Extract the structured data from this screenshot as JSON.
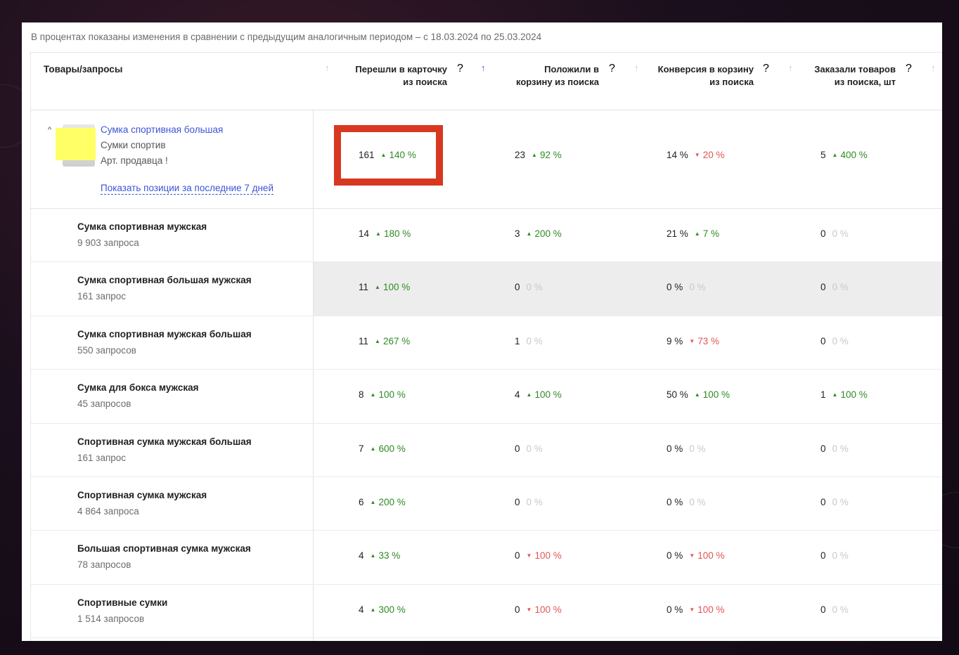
{
  "note": "В процентах показаны изменения в сравнении с предыдущим аналогичным периодом – с 18.03.2024 по 25.03.2024",
  "header": {
    "first_col": "Товары/запросы",
    "columns": [
      {
        "label1": "Перешли в карточку",
        "label2": "из поиска",
        "q": "?"
      },
      {
        "label1": "Положили в",
        "label2": "корзину из поиска",
        "q": "?"
      },
      {
        "label1": "Конверсия в корзину",
        "label2": "из поиска",
        "q": "?"
      },
      {
        "label1": "Заказали товаров",
        "label2": "из поиска, шт",
        "q": "?"
      }
    ],
    "sort_arrow": "↑"
  },
  "product": {
    "chevron": "^",
    "name": "Сумка спортивная большая",
    "category": "Сумки спортив",
    "article": "Арт. продавца !",
    "show_link": "Показать позиции за последние 7 дней",
    "cells": [
      {
        "value": "161",
        "change": "140 %",
        "dir": "up"
      },
      {
        "value": "23",
        "change": "92 %",
        "dir": "up"
      },
      {
        "value": "14 %",
        "change": "20 %",
        "dir": "down"
      },
      {
        "value": "5",
        "change": "400 %",
        "dir": "up"
      }
    ]
  },
  "rows": [
    {
      "name": "Сумка спортивная мужская",
      "count": "9 903 запроса",
      "cells": [
        {
          "value": "14",
          "change": "180 %",
          "dir": "up"
        },
        {
          "value": "3",
          "change": "200 %",
          "dir": "up"
        },
        {
          "value": "21 %",
          "change": "7 %",
          "dir": "up"
        },
        {
          "value": "0",
          "change": "0 %",
          "dir": "zero"
        }
      ]
    },
    {
      "name": "Сумка спортивная большая мужская",
      "count": "161 запрос",
      "cells": [
        {
          "value": "11",
          "change": "100 %",
          "dir": "up"
        },
        {
          "value": "0",
          "change": "0 %",
          "dir": "zero"
        },
        {
          "value": "0 %",
          "change": "0 %",
          "dir": "zero"
        },
        {
          "value": "0",
          "change": "0 %",
          "dir": "zero"
        }
      ]
    },
    {
      "name": "Сумка спортивная мужская большая",
      "count": "550 запросов",
      "cells": [
        {
          "value": "11",
          "change": "267 %",
          "dir": "up"
        },
        {
          "value": "1",
          "change": "0 %",
          "dir": "zero"
        },
        {
          "value": "9 %",
          "change": "73 %",
          "dir": "down"
        },
        {
          "value": "0",
          "change": "0 %",
          "dir": "zero"
        }
      ]
    },
    {
      "name": "Сумка для бокса мужская",
      "count": "45 запросов",
      "cells": [
        {
          "value": "8",
          "change": "100 %",
          "dir": "up"
        },
        {
          "value": "4",
          "change": "100 %",
          "dir": "up"
        },
        {
          "value": "50 %",
          "change": "100 %",
          "dir": "up"
        },
        {
          "value": "1",
          "change": "100 %",
          "dir": "up"
        }
      ]
    },
    {
      "name": "Спортивная сумка мужская большая",
      "count": "161 запрос",
      "cells": [
        {
          "value": "7",
          "change": "600 %",
          "dir": "up"
        },
        {
          "value": "0",
          "change": "0 %",
          "dir": "zero"
        },
        {
          "value": "0 %",
          "change": "0 %",
          "dir": "zero"
        },
        {
          "value": "0",
          "change": "0 %",
          "dir": "zero"
        }
      ]
    },
    {
      "name": "Спортивная сумка мужская",
      "count": "4 864 запроса",
      "cells": [
        {
          "value": "6",
          "change": "200 %",
          "dir": "up"
        },
        {
          "value": "0",
          "change": "0 %",
          "dir": "zero"
        },
        {
          "value": "0 %",
          "change": "0 %",
          "dir": "zero"
        },
        {
          "value": "0",
          "change": "0 %",
          "dir": "zero"
        }
      ]
    },
    {
      "name": "Большая спортивная сумка мужская",
      "count": "78 запросов",
      "cells": [
        {
          "value": "4",
          "change": "33 %",
          "dir": "up"
        },
        {
          "value": "0",
          "change": "100 %",
          "dir": "down"
        },
        {
          "value": "0 %",
          "change": "100 %",
          "dir": "down"
        },
        {
          "value": "0",
          "change": "0 %",
          "dir": "zero"
        }
      ]
    },
    {
      "name": "Спортивные сумки",
      "count": "1 514 запросов",
      "cells": [
        {
          "value": "4",
          "change": "300 %",
          "dir": "up"
        },
        {
          "value": "0",
          "change": "100 %",
          "dir": "down"
        },
        {
          "value": "0 %",
          "change": "100 %",
          "dir": "down"
        },
        {
          "value": "0",
          "change": "0 %",
          "dir": "zero"
        }
      ]
    }
  ],
  "colors": {
    "up": "#2f8a22",
    "down": "#e25555",
    "zero": "#c9c9c9",
    "link": "#3a55d6",
    "highlight_box": "#d8381f"
  }
}
